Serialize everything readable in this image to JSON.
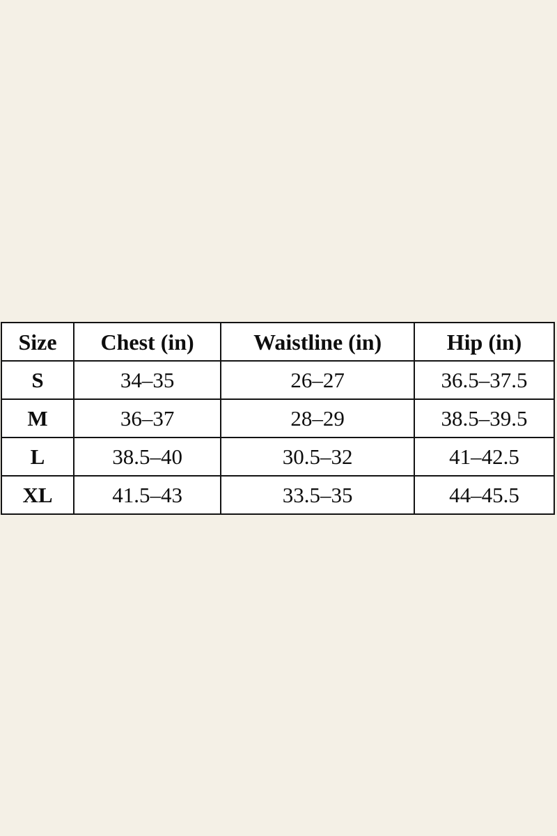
{
  "page": {
    "background_color": "#f4f0e6",
    "table_cell_background": "#ffffff",
    "table_border_color": "#131313",
    "text_color": "#0e0e0e"
  },
  "chart_data": {
    "type": "table",
    "title": "",
    "columns": [
      "Size",
      "Chest (in)",
      "Waistline (in)",
      "Hip (in)"
    ],
    "rows": [
      [
        "S",
        "34–35",
        "26–27",
        "36.5–37.5"
      ],
      [
        "M",
        "36–37",
        "28–29",
        "38.5–39.5"
      ],
      [
        "L",
        "38.5–40",
        "30.5–32",
        "41–42.5"
      ],
      [
        "XL",
        "41.5–43",
        "33.5–35",
        "44–45.5"
      ]
    ]
  },
  "table": {
    "headers": [
      "Size",
      "Chest (in)",
      "Waistline (in)",
      "Hip (in)"
    ],
    "rows": [
      {
        "size": "S",
        "chest": "34–35",
        "waistline": "26–27",
        "hip": "36.5–37.5"
      },
      {
        "size": "M",
        "chest": "36–37",
        "waistline": "28–29",
        "hip": "38.5–39.5"
      },
      {
        "size": "L",
        "chest": "38.5–40",
        "waistline": "30.5–32",
        "hip": "41–42.5"
      },
      {
        "size": "XL",
        "chest": "41.5–43",
        "waistline": "33.5–35",
        "hip": "44–45.5"
      }
    ]
  }
}
